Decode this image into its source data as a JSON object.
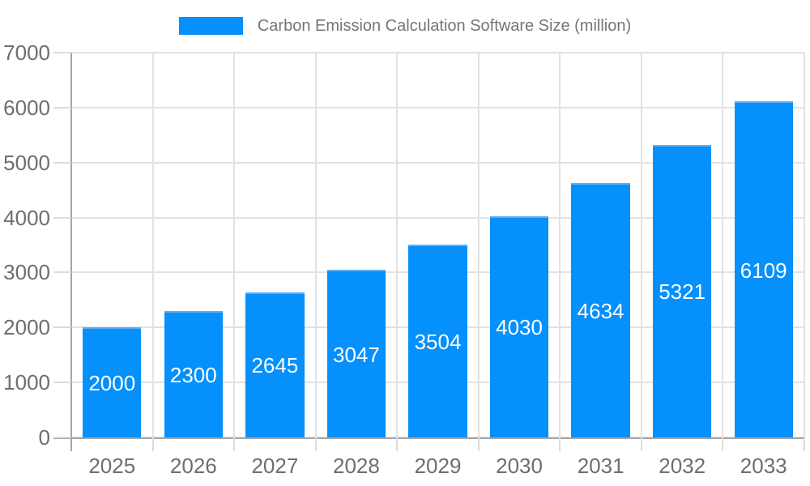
{
  "page": {
    "background": "#ffffff"
  },
  "legend": {
    "label": "Carbon Emission Calculation Software Size (million)"
  },
  "chart_data": {
    "type": "bar",
    "title": "Carbon Emission Calculation Software Size (million)",
    "categories": [
      "2025",
      "2026",
      "2027",
      "2028",
      "2029",
      "2030",
      "2031",
      "2032",
      "2033"
    ],
    "values": [
      2000,
      2300,
      2645,
      3047,
      3504,
      4030,
      4634,
      5321,
      6109
    ],
    "series": [
      {
        "name": "Carbon Emission Calculation Software Size (million)",
        "values": [
          2000,
          2300,
          2645,
          3047,
          3504,
          4030,
          4634,
          5321,
          6109
        ]
      }
    ],
    "xlabel": "",
    "ylabel": "",
    "ylim": [
      0,
      7000
    ],
    "yticks": [
      0,
      1000,
      2000,
      3000,
      4000,
      5000,
      6000,
      7000
    ],
    "grid": true,
    "legend_position": "top",
    "bar_value_labels_visible": true,
    "colors": {
      "bar_fill": "#0590fb",
      "bar_border_top": "#5badf7",
      "bar_label_text": "#ffffff",
      "grid": "#e2e2e2",
      "tick_mark": "#dcdcdc",
      "axis": "#a6a6a6",
      "tick_text": "#6e6e6e",
      "legend_text": "#757575"
    }
  }
}
